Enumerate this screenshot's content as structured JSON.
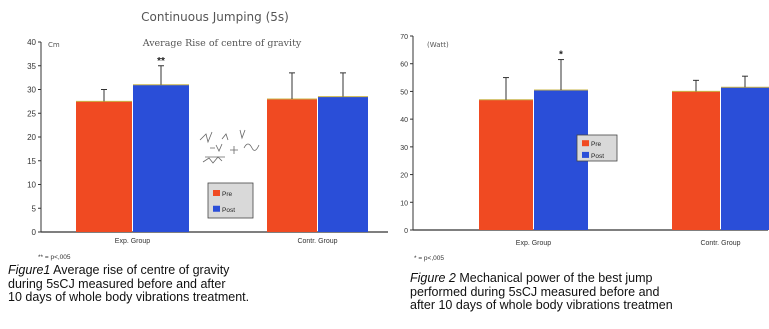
{
  "colors": {
    "pre": "#f04a22",
    "post": "#2a4ed8",
    "error": "#333333",
    "axis": "#333333",
    "legend_bg": "#d9d9d9"
  },
  "legend_labels": [
    "Pre",
    "Post"
  ],
  "captions": [
    {
      "label": "Figure1",
      "text": "  Average rise of centre of gravity\nduring 5sCJ measured before and after\n10 days of whole body vibrations treatment."
    },
    {
      "label": "Figure 2",
      "text": "  Mechanical power of the best jump\nperformed during 5sCJ measured before and\nafter 10 days of whole body vibrations treatmen"
    }
  ],
  "chart_data": [
    {
      "type": "bar",
      "title": "Continuous Jumping (5s)",
      "subtitle": "Average Rise of centre of gravity",
      "ylabel": "Cm",
      "ylim": [
        0,
        40
      ],
      "yticks": [
        0,
        5,
        10,
        15,
        20,
        25,
        30,
        35,
        40
      ],
      "categories": [
        "Exp. Group",
        "Contr. Group"
      ],
      "series": [
        {
          "name": "Pre",
          "values": [
            27.5,
            28
          ],
          "errors": [
            2.5,
            5.5
          ]
        },
        {
          "name": "Post",
          "values": [
            31,
            28.5
          ],
          "errors": [
            4,
            5
          ]
        }
      ],
      "annotations": [
        {
          "text": "**",
          "category": 0,
          "series": 1
        }
      ],
      "footnote": "** = p<,005",
      "legend_position": "center-bottom"
    },
    {
      "type": "bar",
      "ylabel": "(Watt)",
      "ylim": [
        0,
        70
      ],
      "yticks": [
        0,
        10,
        20,
        30,
        40,
        50,
        60,
        70
      ],
      "categories": [
        "Exp. Group",
        "Contr. Group"
      ],
      "series": [
        {
          "name": "Pre",
          "values": [
            47,
            50
          ],
          "errors": [
            8,
            4
          ]
        },
        {
          "name": "Post",
          "values": [
            50.5,
            51.5
          ],
          "errors": [
            11,
            4
          ]
        }
      ],
      "annotations": [
        {
          "text": "*",
          "category": 0,
          "series": 1
        }
      ],
      "footnote": "* = p<,005",
      "legend_position": "center"
    }
  ]
}
